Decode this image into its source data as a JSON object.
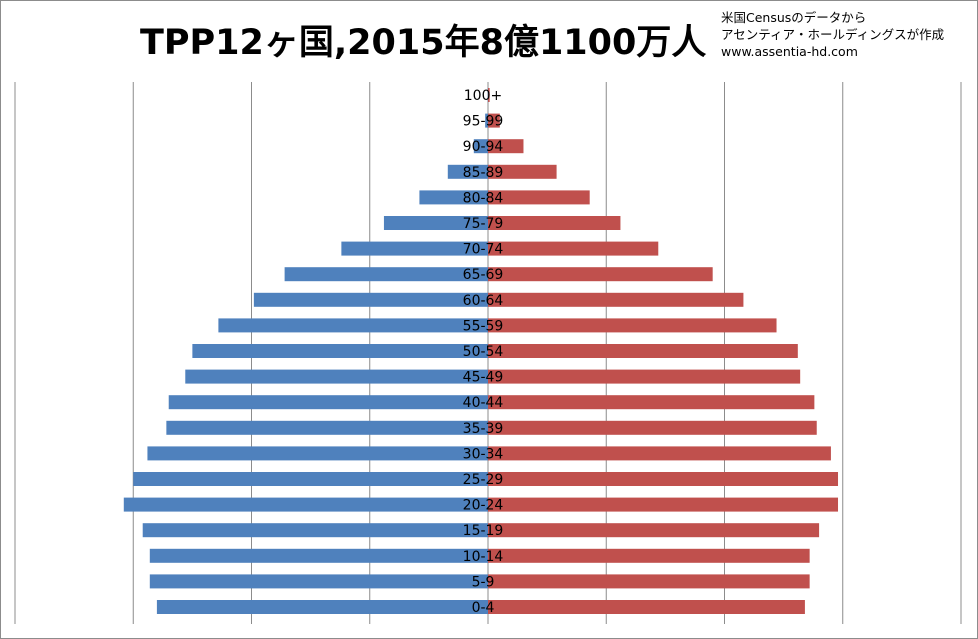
{
  "title": "TPP12ヶ国,2015年8億1100万人",
  "credit": {
    "line1": "米国Censusのデータから",
    "line2": "アセンティア・ホールディングスが作成",
    "line3": "www.assentia-hd.com"
  },
  "colors": {
    "male": "#4f81bd",
    "female": "#c0504d",
    "grid": "#8c8c8c"
  },
  "chart_data": {
    "type": "bar",
    "orientation": "horizontal-population-pyramid",
    "categories": [
      "100+",
      "95-99",
      "90-94",
      "85-89",
      "80-84",
      "75-79",
      "70-74",
      "65-69",
      "60-64",
      "55-59",
      "50-54",
      "45-49",
      "40-44",
      "35-39",
      "30-34",
      "25-29",
      "20-24",
      "15-19",
      "10-14",
      "5-9",
      "0-4"
    ],
    "series": [
      {
        "side": "left",
        "color": "#4f81bd",
        "values": [
          0.01,
          0.12,
          0.6,
          1.7,
          2.9,
          4.4,
          6.2,
          8.6,
          9.9,
          11.4,
          12.5,
          12.8,
          13.5,
          13.6,
          14.4,
          15.0,
          15.4,
          14.6,
          14.3,
          14.3,
          14.0
        ]
      },
      {
        "side": "right",
        "color": "#c0504d",
        "values": [
          0.07,
          0.5,
          1.5,
          2.9,
          4.3,
          5.6,
          7.2,
          9.5,
          10.8,
          12.2,
          13.1,
          13.2,
          13.8,
          13.9,
          14.5,
          14.8,
          14.8,
          14.0,
          13.6,
          13.6,
          13.4
        ]
      }
    ],
    "xlim": [
      -20,
      20
    ],
    "grid": true,
    "legend": "none"
  }
}
